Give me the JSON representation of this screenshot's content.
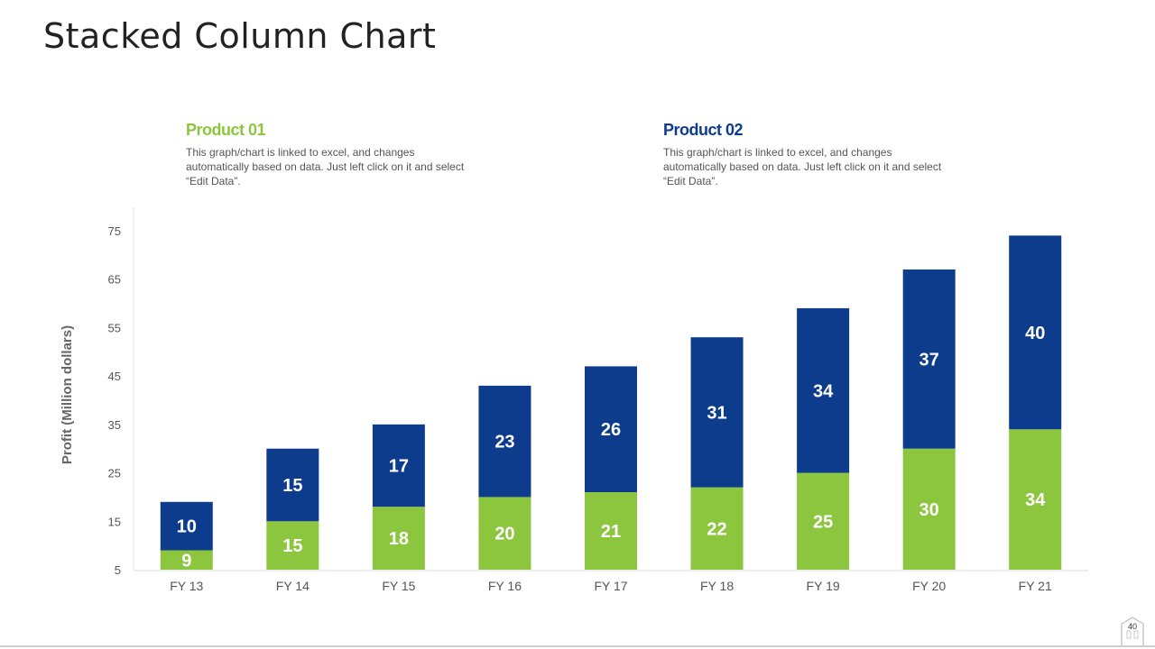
{
  "slide": {
    "title": "Stacked Column Chart",
    "page_number": "40"
  },
  "legend": [
    {
      "heading": "Product 01",
      "description": "This graph/chart is linked to excel, and changes automatically based on data. Just left click on it and select “Edit Data”.",
      "color": "#8CC63F"
    },
    {
      "heading": "Product 02",
      "description": "This graph/chart is linked to excel, and changes automatically based on data. Just left click on it and select “Edit Data”.",
      "color": "#0D3C8C"
    }
  ],
  "chart_data": {
    "type": "bar",
    "stacked": true,
    "categories": [
      "FY 13",
      "FY 14",
      "FY 15",
      "FY 16",
      "FY 17",
      "FY 18",
      "FY 19",
      "FY 20",
      "FY 21"
    ],
    "series": [
      {
        "name": "Product 01",
        "color": "#8CC63F",
        "values": [
          9,
          15,
          18,
          20,
          21,
          22,
          25,
          30,
          34
        ]
      },
      {
        "name": "Product 02",
        "color": "#0D3C8C",
        "values": [
          10,
          15,
          17,
          23,
          26,
          31,
          34,
          37,
          40
        ]
      }
    ],
    "ylabel": "Profit  (Million dollars)",
    "xlabel": "",
    "ylim": [
      5,
      75
    ],
    "yticks": [
      5,
      15,
      25,
      35,
      45,
      55,
      65,
      75
    ],
    "grid": false,
    "data_labels": true
  }
}
